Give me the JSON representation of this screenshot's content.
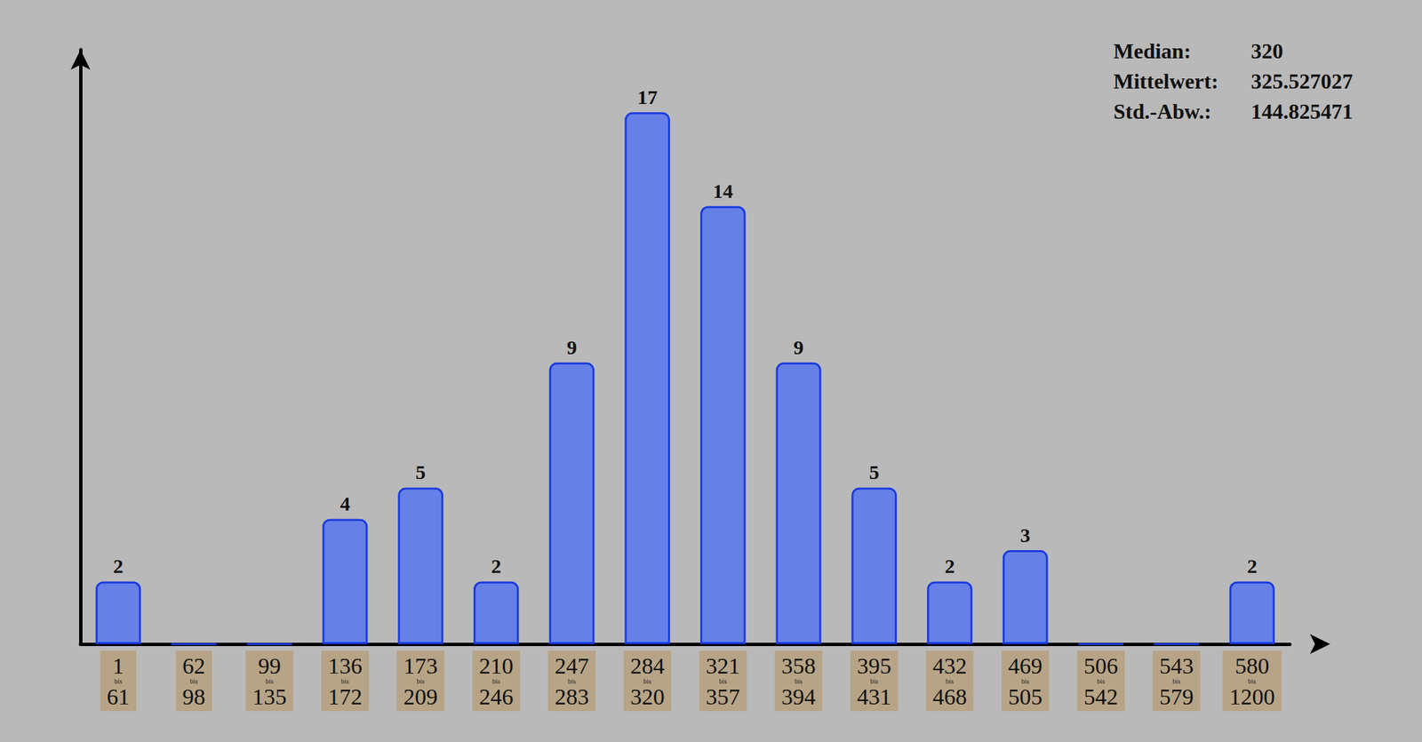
{
  "chart_data": {
    "type": "bar",
    "categories": [
      "1\nbis\n61",
      "62\nbis\n98",
      "99\nbis\n135",
      "136\nbis\n172",
      "173\nbis\n209",
      "210\nbis\n246",
      "247\nbis\n283",
      "284\nbis\n320",
      "321\nbis\n357",
      "358\nbis\n394",
      "395\nbis\n431",
      "432\nbis\n468",
      "469\nbis\n505",
      "506\nbis\n542",
      "543\nbis\n579",
      "580\nbis\n1200"
    ],
    "values": [
      2,
      0,
      0,
      4,
      5,
      2,
      9,
      17,
      14,
      9,
      5,
      2,
      3,
      0,
      0,
      2
    ],
    "color": "#6680e8",
    "ylim": [
      0,
      19
    ],
    "grid": false,
    "data_labels": true,
    "tick_labels": "x",
    "stats": [
      {
        "label": "Median:",
        "value": 320
      },
      {
        "label": "Mittelwert:",
        "value": 325.527027
      },
      {
        "label": "Std.-Abw.:",
        "value": 144.825471
      }
    ]
  }
}
